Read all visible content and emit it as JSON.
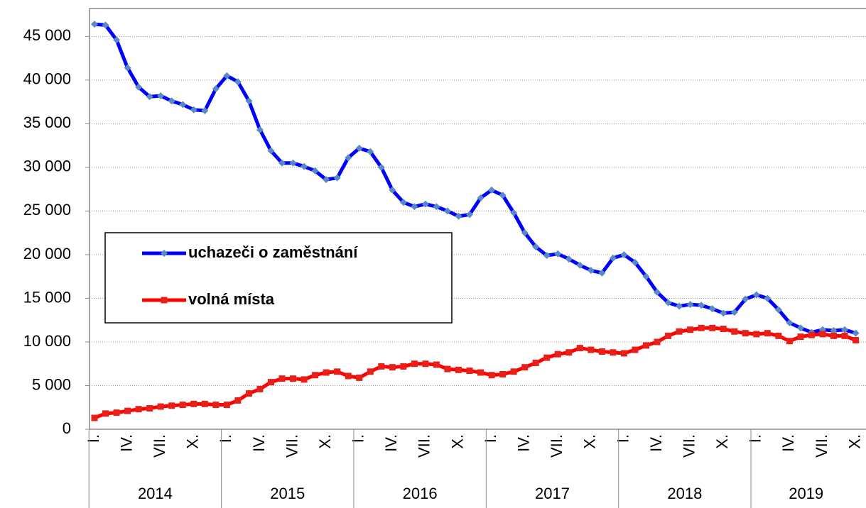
{
  "chart_data": {
    "type": "line",
    "categories": [
      "I.",
      null,
      null,
      "IV.",
      null,
      null,
      "VII.",
      null,
      null,
      "X.",
      null,
      null,
      "I.",
      null,
      null,
      "IV.",
      null,
      null,
      "VII.",
      null,
      null,
      "X.",
      null,
      null,
      "I.",
      null,
      null,
      "IV.",
      null,
      null,
      "VII.",
      null,
      null,
      "X.",
      null,
      null,
      "I.",
      null,
      null,
      "IV.",
      null,
      null,
      "VII.",
      null,
      null,
      "X.",
      null,
      null,
      "I.",
      null,
      null,
      "IV.",
      null,
      null,
      "VII.",
      null,
      null,
      "X.",
      null,
      null,
      "I.",
      null,
      null,
      "IV.",
      null,
      null,
      "VII.",
      null,
      null,
      "X."
    ],
    "years": [
      "2014",
      "2015",
      "2016",
      "2017",
      "2018",
      "2019"
    ],
    "series": [
      {
        "name": "uchazeči o zaměstnání",
        "color": "#0000ff",
        "marker_color": "#5a8ac6",
        "marker": "diamond",
        "values": [
          46400,
          46300,
          44600,
          41400,
          39200,
          38100,
          38200,
          37600,
          37200,
          36600,
          36500,
          39000,
          40500,
          39800,
          37600,
          34300,
          31900,
          30500,
          30500,
          30100,
          29600,
          28600,
          28800,
          31100,
          32200,
          31800,
          30000,
          27400,
          26000,
          25500,
          25800,
          25500,
          25000,
          24400,
          24600,
          26500,
          27400,
          26800,
          24800,
          22500,
          20900,
          19900,
          20100,
          19500,
          18800,
          18200,
          17900,
          19600,
          20000,
          19100,
          17500,
          15700,
          14500,
          14100,
          14300,
          14200,
          13800,
          13300,
          13400,
          14900,
          15400,
          15000,
          13700,
          12200,
          11600,
          11100,
          11400,
          11300,
          11400,
          11000
        ]
      },
      {
        "name": "volná místa",
        "color": "#ff0000",
        "marker_color": "#e8201a",
        "marker": "square",
        "values": [
          1300,
          1800,
          1900,
          2100,
          2300,
          2400,
          2600,
          2700,
          2800,
          2900,
          2900,
          2800,
          2800,
          3300,
          4100,
          4600,
          5400,
          5800,
          5800,
          5700,
          6200,
          6500,
          6600,
          6100,
          5900,
          6600,
          7200,
          7100,
          7200,
          7500,
          7500,
          7400,
          6900,
          6800,
          6700,
          6500,
          6200,
          6300,
          6600,
          7100,
          7600,
          8200,
          8600,
          8800,
          9300,
          9100,
          8900,
          8800,
          8700,
          9100,
          9600,
          10000,
          10700,
          11200,
          11400,
          11600,
          11600,
          11500,
          11200,
          11000,
          10900,
          11000,
          10700,
          10100,
          10600,
          10800,
          10900,
          10700,
          10700,
          10200
        ]
      }
    ],
    "ylim": [
      0,
      48200
    ],
    "yticks": [
      0,
      {
        "value": 5000,
        "label": "5 000"
      },
      {
        "value": 10000,
        "label": "10 000"
      },
      {
        "value": 15000,
        "label": "15 000"
      },
      {
        "value": 20000,
        "label": "20 000"
      },
      {
        "value": 25000,
        "label": "25 000"
      },
      {
        "value": 30000,
        "label": "30 000"
      },
      {
        "value": 35000,
        "label": "35 000"
      },
      {
        "value": 40000,
        "label": "40 000"
      },
      {
        "value": 45000,
        "label": "45 000"
      }
    ],
    "grid": true,
    "legend": "left"
  }
}
